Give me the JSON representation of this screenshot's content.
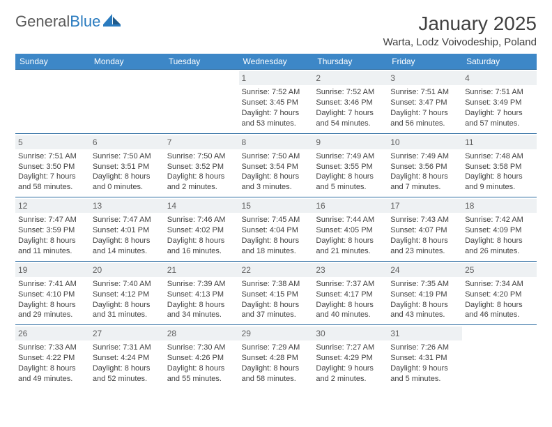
{
  "logo": {
    "text1": "General",
    "text2": "Blue"
  },
  "title": "January 2025",
  "subtitle": "Warta, Lodz Voivodeship, Poland",
  "colors": {
    "header_bg": "#3d87c7",
    "header_text": "#ffffff",
    "row_border": "#2a6aa0",
    "daynum_bg": "#eef1f3",
    "text": "#404040",
    "logo_gray": "#5a5a5a",
    "logo_blue": "#2a7bbf"
  },
  "calendar": {
    "day_headers": [
      "Sunday",
      "Monday",
      "Tuesday",
      "Wednesday",
      "Thursday",
      "Friday",
      "Saturday"
    ],
    "first_weekday_index": 3,
    "days": [
      {
        "n": 1,
        "sunrise": "7:52 AM",
        "sunset": "3:45 PM",
        "dl_h": 7,
        "dl_m": 53
      },
      {
        "n": 2,
        "sunrise": "7:52 AM",
        "sunset": "3:46 PM",
        "dl_h": 7,
        "dl_m": 54
      },
      {
        "n": 3,
        "sunrise": "7:51 AM",
        "sunset": "3:47 PM",
        "dl_h": 7,
        "dl_m": 56
      },
      {
        "n": 4,
        "sunrise": "7:51 AM",
        "sunset": "3:49 PM",
        "dl_h": 7,
        "dl_m": 57
      },
      {
        "n": 5,
        "sunrise": "7:51 AM",
        "sunset": "3:50 PM",
        "dl_h": 7,
        "dl_m": 58
      },
      {
        "n": 6,
        "sunrise": "7:50 AM",
        "sunset": "3:51 PM",
        "dl_h": 8,
        "dl_m": 0
      },
      {
        "n": 7,
        "sunrise": "7:50 AM",
        "sunset": "3:52 PM",
        "dl_h": 8,
        "dl_m": 2
      },
      {
        "n": 8,
        "sunrise": "7:50 AM",
        "sunset": "3:54 PM",
        "dl_h": 8,
        "dl_m": 3
      },
      {
        "n": 9,
        "sunrise": "7:49 AM",
        "sunset": "3:55 PM",
        "dl_h": 8,
        "dl_m": 5
      },
      {
        "n": 10,
        "sunrise": "7:49 AM",
        "sunset": "3:56 PM",
        "dl_h": 8,
        "dl_m": 7
      },
      {
        "n": 11,
        "sunrise": "7:48 AM",
        "sunset": "3:58 PM",
        "dl_h": 8,
        "dl_m": 9
      },
      {
        "n": 12,
        "sunrise": "7:47 AM",
        "sunset": "3:59 PM",
        "dl_h": 8,
        "dl_m": 11
      },
      {
        "n": 13,
        "sunrise": "7:47 AM",
        "sunset": "4:01 PM",
        "dl_h": 8,
        "dl_m": 14
      },
      {
        "n": 14,
        "sunrise": "7:46 AM",
        "sunset": "4:02 PM",
        "dl_h": 8,
        "dl_m": 16
      },
      {
        "n": 15,
        "sunrise": "7:45 AM",
        "sunset": "4:04 PM",
        "dl_h": 8,
        "dl_m": 18
      },
      {
        "n": 16,
        "sunrise": "7:44 AM",
        "sunset": "4:05 PM",
        "dl_h": 8,
        "dl_m": 21
      },
      {
        "n": 17,
        "sunrise": "7:43 AM",
        "sunset": "4:07 PM",
        "dl_h": 8,
        "dl_m": 23
      },
      {
        "n": 18,
        "sunrise": "7:42 AM",
        "sunset": "4:09 PM",
        "dl_h": 8,
        "dl_m": 26
      },
      {
        "n": 19,
        "sunrise": "7:41 AM",
        "sunset": "4:10 PM",
        "dl_h": 8,
        "dl_m": 29
      },
      {
        "n": 20,
        "sunrise": "7:40 AM",
        "sunset": "4:12 PM",
        "dl_h": 8,
        "dl_m": 31
      },
      {
        "n": 21,
        "sunrise": "7:39 AM",
        "sunset": "4:13 PM",
        "dl_h": 8,
        "dl_m": 34
      },
      {
        "n": 22,
        "sunrise": "7:38 AM",
        "sunset": "4:15 PM",
        "dl_h": 8,
        "dl_m": 37
      },
      {
        "n": 23,
        "sunrise": "7:37 AM",
        "sunset": "4:17 PM",
        "dl_h": 8,
        "dl_m": 40
      },
      {
        "n": 24,
        "sunrise": "7:35 AM",
        "sunset": "4:19 PM",
        "dl_h": 8,
        "dl_m": 43
      },
      {
        "n": 25,
        "sunrise": "7:34 AM",
        "sunset": "4:20 PM",
        "dl_h": 8,
        "dl_m": 46
      },
      {
        "n": 26,
        "sunrise": "7:33 AM",
        "sunset": "4:22 PM",
        "dl_h": 8,
        "dl_m": 49
      },
      {
        "n": 27,
        "sunrise": "7:31 AM",
        "sunset": "4:24 PM",
        "dl_h": 8,
        "dl_m": 52
      },
      {
        "n": 28,
        "sunrise": "7:30 AM",
        "sunset": "4:26 PM",
        "dl_h": 8,
        "dl_m": 55
      },
      {
        "n": 29,
        "sunrise": "7:29 AM",
        "sunset": "4:28 PM",
        "dl_h": 8,
        "dl_m": 58
      },
      {
        "n": 30,
        "sunrise": "7:27 AM",
        "sunset": "4:29 PM",
        "dl_h": 9,
        "dl_m": 2
      },
      {
        "n": 31,
        "sunrise": "7:26 AM",
        "sunset": "4:31 PM",
        "dl_h": 9,
        "dl_m": 5
      }
    ]
  }
}
